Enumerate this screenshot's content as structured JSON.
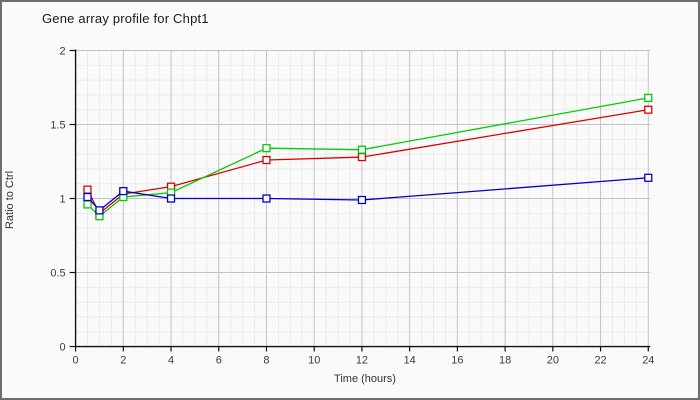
{
  "window": {
    "background": "#fafafa",
    "border_color": "#6d6d6d"
  },
  "chart": {
    "title": "Gene array profile for Chpt1",
    "xlabel": "Time (hours)",
    "ylabel": "Ratio to Ctrl"
  },
  "chart_data": {
    "type": "line",
    "title": "Gene array profile for Chpt1",
    "xlabel": "Time (hours)",
    "ylabel": "Ratio to Ctrl",
    "x": [
      0.5,
      1,
      2,
      4,
      8,
      12,
      24
    ],
    "series": [
      {
        "name": "red",
        "color": "#dd0000",
        "values": [
          1.06,
          0.9,
          1.03,
          1.08,
          1.26,
          1.28,
          1.6
        ]
      },
      {
        "name": "green",
        "color": "#00cc00",
        "values": [
          0.96,
          0.88,
          1.01,
          1.04,
          1.34,
          1.33,
          1.68
        ]
      },
      {
        "name": "blue",
        "color": "#0000cc",
        "values": [
          1.01,
          0.92,
          1.05,
          1.0,
          1.0,
          0.99,
          1.14
        ]
      }
    ],
    "xlim": [
      0,
      24
    ],
    "ylim": [
      0,
      2
    ],
    "x_ticks": [
      0,
      2,
      4,
      6,
      8,
      10,
      12,
      14,
      16,
      18,
      20,
      22,
      24
    ],
    "y_ticks": [
      0,
      0.5,
      1,
      1.5,
      2
    ],
    "x_minor_step": 0.5,
    "y_minor_step": 0.1,
    "grid": true,
    "legend": "none",
    "marker": "open-square",
    "colors": {
      "axis": "#111111",
      "major_grid": "#c3c3c3",
      "minor_grid": "#ebebeb",
      "tick_label": "#3a3a3a"
    }
  }
}
